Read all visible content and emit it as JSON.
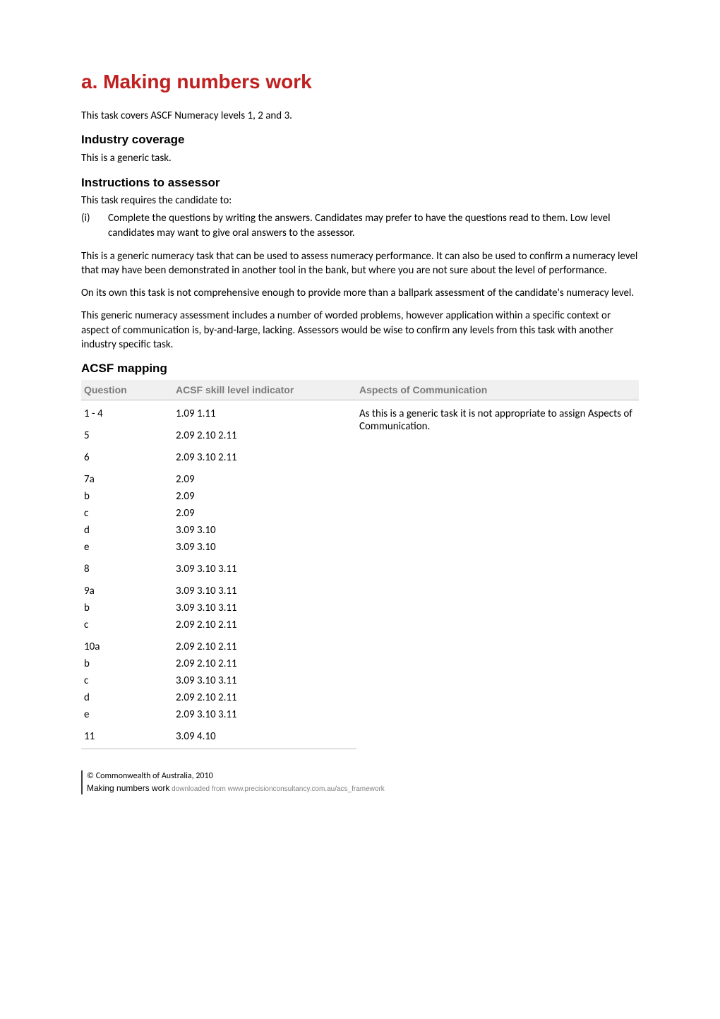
{
  "title_prefix": "a.",
  "title_main": "Making numbers work",
  "intro": "This task covers ASCF Numeracy levels 1, 2 and 3.",
  "industry_heading": "Industry coverage",
  "industry_text": "This is a generic task.",
  "instructions_heading": "Instructions to assessor",
  "instructions_lead": "This task requires the candidate to:",
  "instructions_item_num": "(i)",
  "instructions_item_text": "Complete the questions by writing the answers.  Candidates may prefer to have the questions read to them.  Low level candidates may want to give oral answers to the assessor.",
  "para1": "This is a generic numeracy task that can be used to assess numeracy performance. It can also be used to confirm a numeracy level that may have been demonstrated in another tool in the bank, but where you are not sure about the level of performance.",
  "para2": "On its own this task is not comprehensive enough to provide more than a ballpark assessment of the candidate's numeracy level.",
  "para3": "This generic numeracy assessment includes a number of worded problems, however application within a specific context or aspect of communication is, by-and-large, lacking.  Assessors would be wise to confirm any levels from this task with another industry specific task.",
  "mapping_heading": "ACSF mapping",
  "table": {
    "headers": {
      "question": "Question",
      "indicator": "ACSF skill level indicator",
      "aspects": "Aspects of Communication"
    },
    "aspects_text": "As this is a generic task it is not appropriate to assign Aspects of Communication.",
    "rows": [
      {
        "q": "1  -  4",
        "ind": "1.09  1.11",
        "group_first": true,
        "sub": false
      },
      {
        "q": "5",
        "ind": "2.09  2.10  2.11",
        "group_first": true,
        "sub": false
      },
      {
        "q": "6",
        "ind": "2.09  3.10  2.11",
        "group_first": true,
        "sub": false
      },
      {
        "q": "7a",
        "ind": "2.09",
        "group_first": true,
        "sub": false
      },
      {
        "q": "b",
        "ind": "2.09",
        "group_first": false,
        "sub": true
      },
      {
        "q": "c",
        "ind": "2.09",
        "group_first": false,
        "sub": true
      },
      {
        "q": "d",
        "ind": "3.09  3.10",
        "group_first": false,
        "sub": true
      },
      {
        "q": "e",
        "ind": "3.09  3.10",
        "group_first": false,
        "sub": true
      },
      {
        "q": "8",
        "ind": "3.09  3.10  3.11",
        "group_first": true,
        "sub": false
      },
      {
        "q": "9a",
        "ind": "3.09  3.10  3.11",
        "group_first": true,
        "sub": false
      },
      {
        "q": "b",
        "ind": "3.09  3.10  3.11",
        "group_first": false,
        "sub": true
      },
      {
        "q": "c",
        "ind": "2.09  2.10  2.11",
        "group_first": false,
        "sub": true
      },
      {
        "q": "10a",
        "ind": "2.09  2.10  2.11",
        "group_first": true,
        "sub": false
      },
      {
        "q": "b",
        "ind": "2.09  2.10  2.11",
        "group_first": false,
        "sub": true
      },
      {
        "q": "c",
        "ind": "3.09  3.10  3.11",
        "group_first": false,
        "sub": true
      },
      {
        "q": "d",
        "ind": "2.09  2.10  2.11",
        "group_first": false,
        "sub": true
      },
      {
        "q": "e",
        "ind": "2.09  3.10  3.11",
        "group_first": false,
        "sub": true
      },
      {
        "q": "11",
        "ind": "3.09  4.10",
        "group_first": true,
        "sub": false
      }
    ]
  },
  "footer": {
    "copyright": "© Commonwealth of Australia, 2010",
    "doc_title": "Making numbers work",
    "downloaded": " downloaded from www.precisionconsultancy.com.au/acs_framework"
  }
}
